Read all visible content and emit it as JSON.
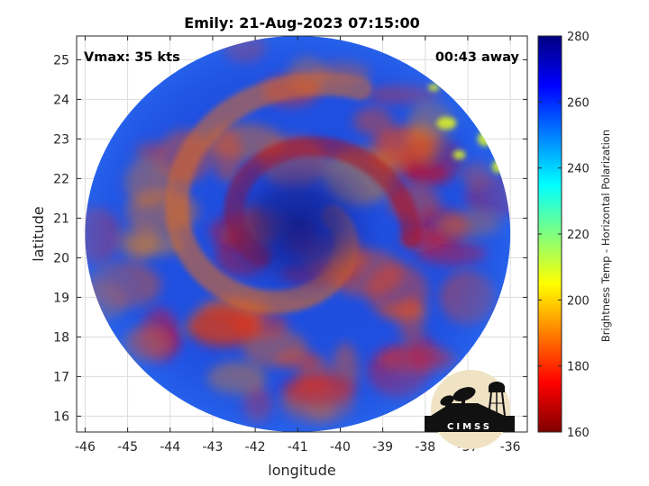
{
  "title": "Emily: 21-Aug-2023 07:15:00",
  "vmax_label": "Vmax: 35 kts",
  "time_label": "00:43 away",
  "xlabel": "longitude",
  "ylabel": "latitude",
  "colorbar_label": "Brightness Temp - Horizontal Polarization",
  "logo_text": "CIMSS",
  "chart_data": {
    "type": "heatmap",
    "title": "Emily: 21-Aug-2023 07:15:00",
    "xlabel": "longitude",
    "ylabel": "latitude",
    "xlim": [
      -46.2,
      -35.6
    ],
    "ylim": [
      15.6,
      25.6
    ],
    "xticks": [
      -46,
      -45,
      -44,
      -43,
      -42,
      -41,
      -40,
      -39,
      -38,
      -37,
      -36
    ],
    "yticks": [
      16,
      17,
      18,
      19,
      20,
      21,
      22,
      23,
      24,
      25
    ],
    "grid": true,
    "colorbar": {
      "label": "Brightness Temp - Horizontal Polarization",
      "range": [
        160,
        280
      ],
      "ticks": [
        160,
        180,
        200,
        220,
        240,
        260,
        280
      ],
      "colormap": "jet"
    },
    "swath": {
      "center_lon": -41.0,
      "center_lat": 20.6,
      "lon_radius": 5.0,
      "lat_radius": 5.0
    },
    "storm_center": {
      "lon": -41.0,
      "lat": 20.8,
      "min_temp": 275
    },
    "annotations": [
      "Vmax: 35 kts",
      "00:43 away"
    ]
  }
}
